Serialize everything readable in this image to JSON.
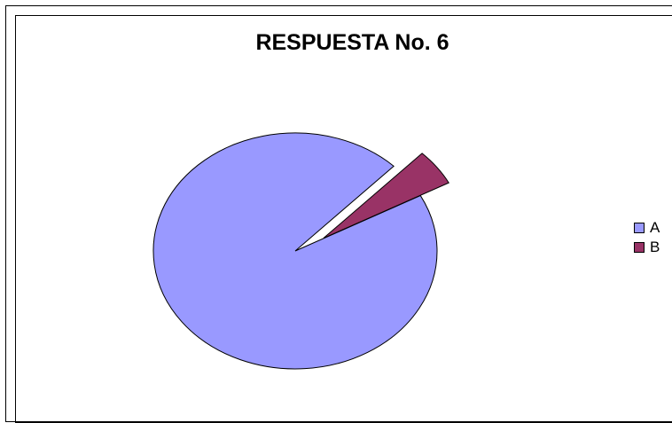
{
  "chart_data": {
    "type": "pie",
    "title": "RESPUESTA No. 6",
    "categories": [
      "A",
      "B"
    ],
    "values": [
      95,
      5
    ],
    "colors": [
      "#9999ff",
      "#993366"
    ],
    "legend": "right",
    "exploded": true
  }
}
